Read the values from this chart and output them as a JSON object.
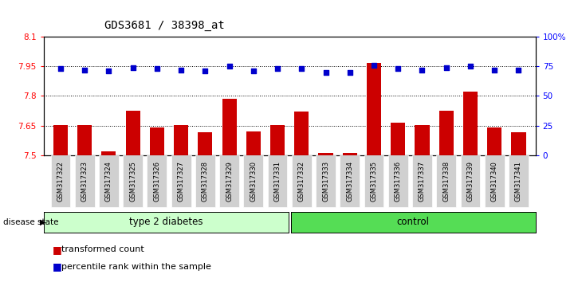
{
  "title": "GDS3681 / 38398_at",
  "samples": [
    "GSM317322",
    "GSM317323",
    "GSM317324",
    "GSM317325",
    "GSM317326",
    "GSM317327",
    "GSM317328",
    "GSM317329",
    "GSM317330",
    "GSM317331",
    "GSM317332",
    "GSM317333",
    "GSM317334",
    "GSM317335",
    "GSM317336",
    "GSM317337",
    "GSM317338",
    "GSM317339",
    "GSM317340",
    "GSM317341"
  ],
  "red_values": [
    7.651,
    7.651,
    7.517,
    7.725,
    7.641,
    7.651,
    7.614,
    7.785,
    7.618,
    7.651,
    7.72,
    7.511,
    7.51,
    7.965,
    7.665,
    7.651,
    7.725,
    7.82,
    7.641,
    7.614
  ],
  "blue_values": [
    73,
    72,
    71,
    74,
    73,
    72,
    71,
    75,
    71,
    73,
    73,
    70,
    70,
    76,
    73,
    72,
    74,
    75,
    72,
    72
  ],
  "group1_label": "type 2 diabetes",
  "group2_label": "control",
  "group1_count": 10,
  "group2_count": 10,
  "ylim_left": [
    7.5,
    8.1
  ],
  "ylim_right": [
    0,
    100
  ],
  "yticks_left": [
    7.5,
    7.65,
    7.8,
    7.95,
    8.1
  ],
  "yticks_right": [
    0,
    25,
    50,
    75,
    100
  ],
  "ytick_labels_left": [
    "7.5",
    "7.65",
    "7.8",
    "7.95",
    "8.1"
  ],
  "ytick_labels_right": [
    "0",
    "25",
    "50",
    "75",
    "100%"
  ],
  "bar_color": "#cc0000",
  "dot_color": "#0000cc",
  "group1_color": "#ccffcc",
  "group2_color": "#55dd55",
  "legend_label_red": "transformed count",
  "legend_label_blue": "percentile rank within the sample",
  "disease_state_label": "disease state",
  "base_value": 7.5,
  "hgrid_values": [
    7.65,
    7.8,
    7.95
  ]
}
